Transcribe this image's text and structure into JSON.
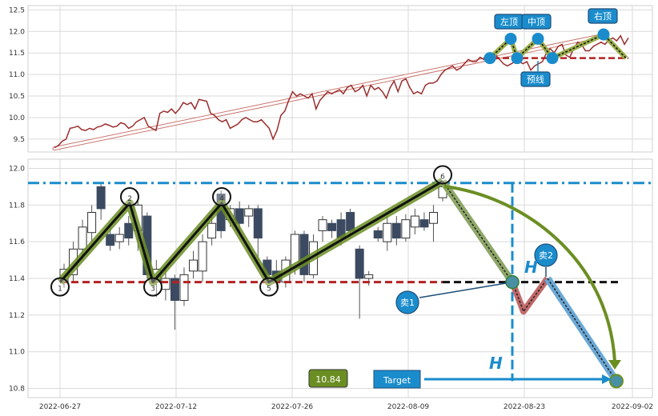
{
  "chart_data": [
    {
      "type": "line",
      "panel": "top",
      "ylim": [
        9.2,
        12.6
      ],
      "yticks": [
        "9.5",
        "10.0",
        "10.5",
        "11.0",
        "11.5",
        "12.0",
        "12.5"
      ],
      "series": [
        {
          "values": [
            9.3,
            9.35,
            9.45,
            9.5,
            9.75,
            9.77,
            9.8,
            9.72,
            9.7,
            9.75,
            9.72,
            9.78,
            9.8,
            9.85,
            9.82,
            9.78,
            9.8,
            9.88,
            9.85,
            9.75,
            9.8,
            9.9,
            9.95,
            10.0,
            9.8,
            9.75,
            9.7,
            10.1,
            10.15,
            10.12,
            10.2,
            10.1,
            10.2,
            10.35,
            10.3,
            10.35,
            10.2,
            10.42,
            10.4,
            10.38,
            10.1,
            10.05,
            9.95,
            9.9,
            9.95,
            9.75,
            9.8,
            9.85,
            9.95,
            10.0,
            9.95,
            9.9,
            9.9,
            9.95,
            9.85,
            9.75,
            9.5,
            9.7,
            10.05,
            10.15,
            10.4,
            10.6,
            10.5,
            10.55,
            10.5,
            10.45,
            10.55,
            10.2,
            10.4,
            10.5,
            10.6,
            10.55,
            10.6,
            10.65,
            10.55,
            10.7,
            10.75,
            10.6,
            10.65,
            10.75,
            10.5,
            10.75,
            10.65,
            10.7,
            10.6,
            10.45,
            10.7,
            10.85,
            10.6,
            10.85,
            10.9,
            10.7,
            10.55,
            10.6,
            10.55,
            10.75,
            10.8,
            10.8,
            10.85,
            11.0,
            11.1,
            11.15,
            11.2,
            11.1,
            11.15,
            11.25,
            11.35,
            11.3,
            11.3,
            11.4,
            11.35,
            11.3,
            11.3,
            11.45,
            11.35,
            11.25,
            11.2,
            11.25,
            11.3,
            11.3,
            11.25,
            11.3,
            11.1,
            11.2,
            11.25,
            11.3,
            11.5,
            11.6,
            11.5,
            11.65,
            11.7,
            11.45,
            11.4,
            11.6,
            11.75,
            11.7,
            11.55,
            11.55,
            11.65,
            11.7,
            11.75,
            11.7,
            11.8,
            11.85,
            11.78,
            11.9,
            11.7,
            11.85
          ]
        }
      ],
      "trendline": {
        "from": 9.3,
        "to": 11.92
      },
      "neckline": 11.38,
      "pattern": [
        11.38,
        11.83,
        11.38,
        11.83,
        11.38,
        11.93,
        11.38
      ],
      "labels": {
        "left": "左顶",
        "mid": "中顶",
        "right": "右顶",
        "neck": "预线"
      }
    },
    {
      "type": "candlestick",
      "panel": "bottom",
      "ylim": [
        10.75,
        12.05
      ],
      "yticks": [
        "10.8",
        "11.0",
        "11.2",
        "11.4",
        "11.6",
        "11.8",
        "12.0"
      ],
      "xlabels": [
        "2022-06-27",
        "2022-07-12",
        "2022-07-26",
        "2022-08-09",
        "2022-08-23",
        "2022-09-02"
      ],
      "candles": [
        [
          11.38,
          11.45,
          11.35,
          11.48
        ],
        [
          11.42,
          11.56,
          11.38,
          11.6
        ],
        [
          11.56,
          11.68,
          11.5,
          11.72
        ],
        [
          11.65,
          11.76,
          11.6,
          11.8
        ],
        [
          11.9,
          11.78,
          11.72,
          11.92
        ],
        [
          11.64,
          11.58,
          11.55,
          11.7
        ],
        [
          11.6,
          11.64,
          11.56,
          11.68
        ],
        [
          11.7,
          11.62,
          11.58,
          11.74
        ],
        [
          11.66,
          11.8,
          11.55,
          11.82
        ],
        [
          11.74,
          11.42,
          11.4,
          11.76
        ],
        [
          11.38,
          11.45,
          11.3,
          11.5
        ],
        [
          11.34,
          11.4,
          11.28,
          11.45
        ],
        [
          11.4,
          11.28,
          11.12,
          11.42
        ],
        [
          11.28,
          11.42,
          11.25,
          11.46
        ],
        [
          11.44,
          11.5,
          11.4,
          11.55
        ],
        [
          11.44,
          11.6,
          11.38,
          11.64
        ],
        [
          11.62,
          11.7,
          11.58,
          11.74
        ],
        [
          11.86,
          11.66,
          11.62,
          11.88
        ],
        [
          11.72,
          11.78,
          11.68,
          11.8
        ],
        [
          11.78,
          11.7,
          11.66,
          11.82
        ],
        [
          11.74,
          11.78,
          11.68,
          11.8
        ],
        [
          11.78,
          11.62,
          11.5,
          11.8
        ],
        [
          11.5,
          11.42,
          11.38,
          11.52
        ],
        [
          11.44,
          11.38,
          11.35,
          11.5
        ],
        [
          11.38,
          11.5,
          11.35,
          11.52
        ],
        [
          11.46,
          11.64,
          11.42,
          11.66
        ],
        [
          11.64,
          11.42,
          11.38,
          11.66
        ],
        [
          11.42,
          11.6,
          11.4,
          11.64
        ],
        [
          11.66,
          11.72,
          11.6,
          11.74
        ],
        [
          11.7,
          11.66,
          11.62,
          11.72
        ],
        [
          11.72,
          11.62,
          11.58,
          11.76
        ],
        [
          11.76,
          11.66,
          11.62,
          11.78
        ],
        [
          11.56,
          11.4,
          11.18,
          11.58
        ],
        [
          11.4,
          11.42,
          11.36,
          11.44
        ],
        [
          11.66,
          11.62,
          11.6,
          11.68
        ],
        [
          11.6,
          11.7,
          11.55,
          11.74
        ],
        [
          11.7,
          11.62,
          11.58,
          11.74
        ],
        [
          11.62,
          11.72,
          11.6,
          11.75
        ],
        [
          11.68,
          11.74,
          11.64,
          11.78
        ],
        [
          11.72,
          11.68,
          11.66,
          11.76
        ],
        [
          11.7,
          11.76,
          11.6,
          11.8
        ],
        [
          11.84,
          11.9,
          11.82,
          11.92
        ]
      ],
      "pattern": [
        {
          "value": 11.38,
          "label": "1"
        },
        {
          "value": 11.81,
          "label": "2"
        },
        {
          "value": 11.38,
          "label": "3"
        },
        {
          "value": 11.81,
          "label": "4"
        },
        {
          "value": 11.38,
          "label": "5"
        },
        {
          "value": 11.93,
          "label": "6"
        }
      ],
      "resistance": 11.92,
      "neckline": 11.38,
      "breakout": 11.38,
      "pullback_low": 11.22,
      "sell2": 11.4,
      "target": 10.84,
      "labels": {
        "sell1": "卖1",
        "sell2": "卖2",
        "height": "H",
        "target_label": "Target",
        "target_value": "10.84"
      }
    }
  ],
  "colors": {
    "grid": "#d9d9d9",
    "price": "#9b2d2d",
    "pattern_green": "#6b8e23",
    "neck_red": "#b22222",
    "blue": "#1a8ccc",
    "candle_dark": "#3b4a60",
    "badge_border": "#1f4e79"
  }
}
